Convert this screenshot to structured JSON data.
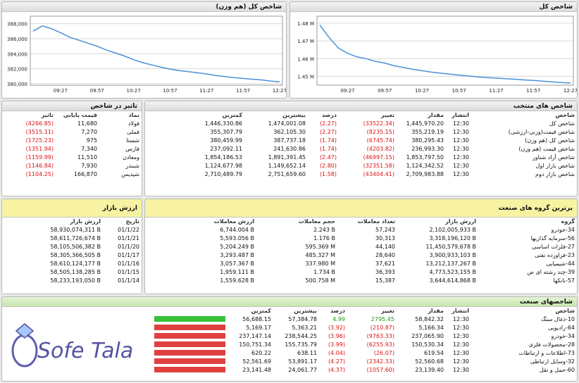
{
  "chart_weighted": {
    "title": "شاخص کل (هم وزن)",
    "chart_data": {
      "type": "line",
      "x_ticks": [
        "09:27",
        "09:57",
        "10:27",
        "10:57",
        "11:27",
        "11:57",
        "12:27"
      ],
      "y_ticks": [
        "388,000",
        "386,000",
        "384,000",
        "382,000",
        "380,000"
      ],
      "ylim": [
        379800,
        389000
      ],
      "x": [
        "09:05",
        "09:12",
        "09:20",
        "09:27",
        "09:35",
        "09:42",
        "09:50",
        "09:57",
        "10:05",
        "10:12",
        "10:20",
        "10:27",
        "10:35",
        "10:42",
        "10:50",
        "10:57",
        "11:05",
        "11:12",
        "11:20",
        "11:27",
        "11:35",
        "11:42",
        "11:50",
        "11:57",
        "12:05",
        "12:12",
        "12:20",
        "12:27"
      ],
      "values": [
        387000,
        387700,
        387350,
        386800,
        386200,
        385800,
        385400,
        385000,
        384500,
        384100,
        383700,
        383200,
        382800,
        382500,
        382200,
        381950,
        381750,
        381600,
        381450,
        381300,
        381100,
        380950,
        380800,
        380700,
        380600,
        380500,
        380350,
        380250
      ],
      "grid": true,
      "color": "#4a90d9"
    }
  },
  "chart_total": {
    "title": "شاخص کل",
    "chart_data": {
      "type": "line",
      "x_ticks": [
        "09:27",
        "09:57",
        "10:27",
        "10:57",
        "11:27",
        "11:57",
        "12:27"
      ],
      "y_ticks": [
        "1.48 M",
        "1.47 M",
        "1.46 M",
        "1.45 M"
      ],
      "ylim": [
        1445000,
        1484000
      ],
      "x": [
        "09:05",
        "09:12",
        "09:20",
        "09:27",
        "09:35",
        "09:42",
        "09:50",
        "09:57",
        "10:05",
        "10:12",
        "10:20",
        "10:27",
        "10:35",
        "10:42",
        "10:50",
        "10:57",
        "11:05",
        "11:12",
        "11:20",
        "11:27",
        "11:35",
        "11:42",
        "11:50",
        "11:57",
        "12:05",
        "12:12",
        "12:20",
        "12:27"
      ],
      "values": [
        1479000,
        1472000,
        1466000,
        1463000,
        1461000,
        1460000,
        1458500,
        1457500,
        1456000,
        1455000,
        1454000,
        1453200,
        1452400,
        1451800,
        1451200,
        1450700,
        1450200,
        1449700,
        1449300,
        1449000,
        1448700,
        1448400,
        1448000,
        1447700,
        1447300,
        1446900,
        1446500,
        1446200
      ],
      "grid": true,
      "color": "#4a90d9"
    }
  },
  "impact": {
    "title": "تاثیر در شاخص",
    "headers": [
      "نماد",
      "قیمت پایانی",
      "تاثیر"
    ],
    "rows": [
      [
        "فولاد",
        "11,680",
        "(4266.85)"
      ],
      [
        "فملی",
        "7,270",
        "(3515.11)"
      ],
      [
        "شستا",
        "975",
        "(1725.23)"
      ],
      [
        "فارس",
        "7,340",
        "(1351.94)"
      ],
      [
        "ومعادن",
        "11,510",
        "(1159.99)"
      ],
      [
        "شبندر",
        "7,930",
        "(1146.84)"
      ],
      [
        "شپدیس",
        "166,870",
        "(1104.25)"
      ]
    ]
  },
  "selected": {
    "title": "شاخص های منتخب",
    "headers": [
      "شاخص",
      "انتشار",
      "مقدار",
      "تغییر",
      "درصد",
      "بیشترین",
      "کمترین"
    ],
    "rows": [
      [
        "شاخص کل",
        "12:30",
        "1,445,970.20",
        "(33522.34)",
        "(2.27)",
        "1,474,001.08",
        "1,446,330.86"
      ],
      [
        "شاخص قیمت(وزنی-ارزشی)",
        "12:30",
        "355,219.19",
        "(8235.15)",
        "(2.27)",
        "362,105.30",
        "355,307.79"
      ],
      [
        "شاخص کل (هم وزن)",
        "12:30",
        "380,295.43",
        "(6745.74)",
        "(1.74)",
        "387,737.18",
        "380,459.99"
      ],
      [
        "شاخص قیمت (هم وزن)",
        "12:30",
        "236,993.30",
        "(4203.82)",
        "(1.74)",
        "241,630.86",
        "237,092.11"
      ],
      [
        "شاخص آزاد شناور",
        "12:30",
        "1,853,797.50",
        "(46997.15)",
        "(2.47)",
        "1,891,391.45",
        "1,854,186.53"
      ],
      [
        "شاخص بازار اول",
        "12:30",
        "1,124,342.52",
        "(32351.58)",
        "(2.80)",
        "1,149,652.14",
        "1,124,677.98"
      ],
      [
        "شاخص بازار دوم",
        "12:30",
        "2,709,983.88",
        "(43404.41)",
        "(1.58)",
        "2,751,659.60",
        "2,710,489.79"
      ]
    ]
  },
  "market_value": {
    "title": "ارزش بازار",
    "headers": [
      "تاریخ",
      "ارزش بازار"
    ],
    "rows": [
      [
        "01/1/22",
        "58,930,074,311 B"
      ],
      [
        "01/1/21",
        "58,611,726,674 B"
      ],
      [
        "01/1/20",
        "58,105,506,382 B"
      ],
      [
        "01/1/17",
        "58,305,366,505 B"
      ],
      [
        "01/1/16",
        "58,610,124,177 B"
      ],
      [
        "01/1/15",
        "58,505,138,285 B"
      ],
      [
        "01/1/14",
        "58,233,193,050 B"
      ]
    ]
  },
  "top_groups": {
    "title": "برترین گروه های صنعت",
    "headers": [
      "گروه",
      "ارزش بازار",
      "تعداد معاملات",
      "حجم معاملات",
      "ارزش معاملات"
    ],
    "rows": [
      [
        "34-خودرو",
        "2,102,005,933 B",
        "57,243",
        "2.243 B",
        "6,744.004 B"
      ],
      [
        "56-سرمایه گذاریها",
        "3,318,196,120 B",
        "30,313",
        "1.176 B",
        "5,593.056 B"
      ],
      [
        "27-فلزات اساسی",
        "11,450,579,678 B",
        "44,140",
        "595.369 M",
        "5,204.249 B"
      ],
      [
        "23-فراورده نفتی",
        "3,900,933,103 B",
        "28,640",
        "485.327 M",
        "3,293.487 B"
      ],
      [
        "44-شیمیایی",
        "13,212,137,267 B",
        "37,621",
        "337.980 M",
        "3,057.367 B"
      ],
      [
        "39-چند رشته ای ص",
        "4,773,523,155 B",
        "36,393",
        "1.734 B",
        "1,959.111 B"
      ],
      [
        "57-بانکها",
        "3,644,614,868 B",
        "15,387",
        "500.758 M",
        "1,559.628 B"
      ]
    ]
  },
  "industry": {
    "title": "شاخصهای صنعت",
    "headers": [
      "شاخص",
      "انتشار",
      "مقدار",
      "تغییر",
      "درصد",
      "بیشترین",
      "کمترین"
    ],
    "rows": [
      [
        "10-ذغال سنگ",
        "12:30",
        "58,842.32",
        "2795.45",
        "4.99",
        "57,384.78",
        "56,688.15"
      ],
      [
        "64-رادیویی",
        "12:30",
        "5,166.34",
        "(210.87)",
        "(3.92)",
        "5,363.21",
        "5,169.17"
      ],
      [
        "34-خودرو",
        "12:30",
        "237,065.90",
        "(9763.33)",
        "(3.96)",
        "238,544.25",
        "237,147.14"
      ],
      [
        "28-محصولات فلزی",
        "12:30",
        "150,530.34",
        "(6255.93)",
        "(3.99)",
        "155,735.79",
        "150,751.34"
      ],
      [
        "73-اطلاعات و ارتباطات",
        "12:30",
        "619.54",
        "(26.07)",
        "(4.04)",
        "638.11",
        "620.22"
      ],
      [
        "32-وسایل ارتباطی",
        "12:30",
        "52,560.68",
        "(2342.33)",
        "(4.27)",
        "53,891.17",
        "52,561.69"
      ],
      [
        "60-حمل و نقل",
        "12:30",
        "23,139.40",
        "(1057.60)",
        "(4.37)",
        "24,061.77",
        "23,141.48"
      ]
    ],
    "bars": [
      0.72,
      0.72,
      0.72,
      0.72,
      0.72,
      0.72,
      0.72
    ]
  },
  "watermark": "Sofe Tala",
  "colors": {
    "neg": "#dd1111",
    "pos": "#1a9a1a",
    "line": "#4a90d9",
    "bar_red": "#e04040",
    "bar_green": "#38c038"
  }
}
